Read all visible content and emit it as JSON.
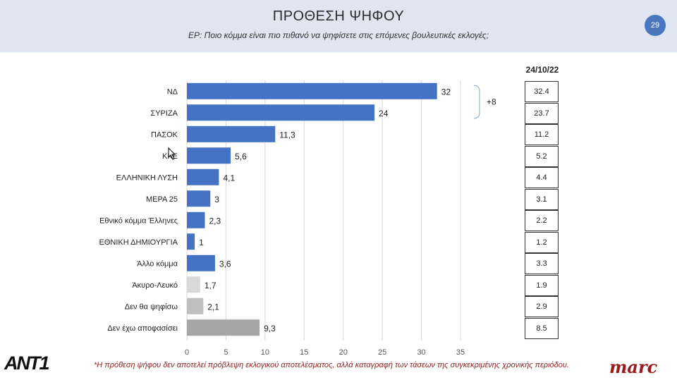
{
  "header": {
    "title": "ΠΡΟΘΕΣΗ ΨΗΦΟΥ",
    "subtitle": "ΕΡ: Ποιο κόμμα είναι πιο πιθανό να ψηφίσετε στις επόμενες βουλευτικές εκλογές;",
    "page_number": "29"
  },
  "chart_data": {
    "type": "bar",
    "orientation": "horizontal",
    "categories": [
      "ΝΔ",
      "ΣΥΡΙΖΑ",
      "ΠΑΣΟΚ",
      "ΚΚΕ",
      "ΕΛΛΗΝΙΚΗ ΛΥΣΗ",
      "ΜΕΡΑ 25",
      "Εθνικό κόμμα Έλληνες",
      "ΕΘΝΙΚΗ ΔΗΜΙΟΥΡΓΙΑ",
      "Άλλο κόμμα",
      "Άκυρο-Λευκό",
      "Δεν θα ψηφίσω",
      "Δεν έχω αποφασίσει"
    ],
    "values": [
      32,
      24,
      11.3,
      5.6,
      4.1,
      3,
      2.3,
      1,
      3.6,
      1.7,
      2.1,
      9.3
    ],
    "value_labels": [
      "32",
      "24",
      "11,3",
      "5,6",
      "4,1",
      "3",
      "2,3",
      "1",
      "3,6",
      "1,7",
      "2,1",
      "9,3"
    ],
    "bar_colors": [
      "#4472c4",
      "#4472c4",
      "#4472c4",
      "#4472c4",
      "#4472c4",
      "#4472c4",
      "#4472c4",
      "#4472c4",
      "#4472c4",
      "#d9d9d9",
      "#bfbfbf",
      "#a6a6a6"
    ],
    "xlim": [
      0,
      35
    ],
    "xticks": [
      0,
      5,
      10,
      15,
      20,
      25,
      30,
      35
    ],
    "grid": true,
    "annotation": {
      "text": "+8",
      "between": [
        "ΝΔ",
        "ΣΥΡΙΖΑ"
      ]
    },
    "comparison": {
      "label": "24/10/22",
      "values": [
        "32.4",
        "23.7",
        "11.2",
        "5.2",
        "4.4",
        "3.1",
        "2.2",
        "1.2",
        "3.3",
        "1.9",
        "2.9",
        "8.5"
      ]
    }
  },
  "footnote": "*Η πρόθεση ψήφου δεν αποτελεί πρόβλεψη εκλογικού αποτελέσματος, αλλά καταγραφή των τάσεων της συγκεκριμένης χρονικής περιόδου.",
  "logos": {
    "left": "ANT1",
    "right": "marc"
  },
  "colors": {
    "bar_primary": "#4472c4",
    "header_bg": "#dfe6f1",
    "footnote": "#8b2323",
    "badge": "#4a78c0"
  }
}
